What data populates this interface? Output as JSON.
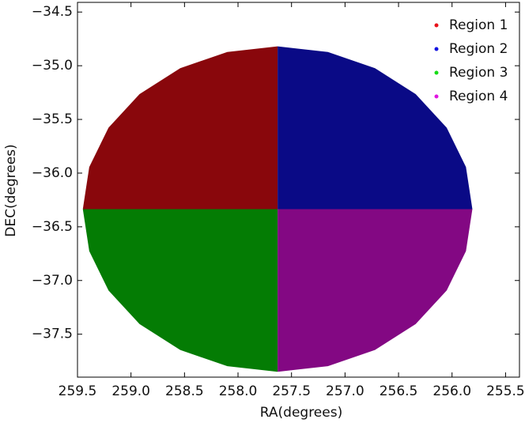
{
  "chart_data": {
    "type": "area",
    "xlabel": "RA(degrees)",
    "ylabel": "DEC(degrees)",
    "xlim": [
      259.5,
      255.37
    ],
    "ylim": [
      -37.9,
      -34.41
    ],
    "xticks": [
      {
        "value": 259.5,
        "label": "259.5"
      },
      {
        "value": 259,
        "label": "259.0"
      },
      {
        "value": 258.5,
        "label": "258.5"
      },
      {
        "value": 258,
        "label": "258.0"
      },
      {
        "value": 257.5,
        "label": "257.5"
      },
      {
        "value": 257,
        "label": "257.0"
      },
      {
        "value": 256.5,
        "label": "256.5"
      },
      {
        "value": 256,
        "label": "256.0"
      },
      {
        "value": 255.5,
        "label": "255.5"
      }
    ],
    "yticks": [
      {
        "value": -34.5,
        "label": "−34.5"
      },
      {
        "value": -35,
        "label": "−35.0"
      },
      {
        "value": -35.5,
        "label": "−35.5"
      },
      {
        "value": -36,
        "label": "−36.0"
      },
      {
        "value": -36.5,
        "label": "−36.5"
      },
      {
        "value": -37,
        "label": "−37.0"
      },
      {
        "value": -37.5,
        "label": "−37.5"
      }
    ],
    "legend": "upper right",
    "series": [
      {
        "name": "Region 1",
        "color": "#e8121a",
        "x": [
          257.63,
          259.45,
          259.39,
          259.21,
          258.92,
          258.54,
          258.1,
          257.63
        ],
        "y": [
          -36.335,
          -36.335,
          -35.943,
          -35.577,
          -35.264,
          -35.023,
          -34.872,
          -34.82
        ]
      },
      {
        "name": "Region 2",
        "color": "#1414e0",
        "x": [
          257.63,
          255.81,
          255.87,
          256.05,
          256.34,
          256.72,
          257.16,
          257.63
        ],
        "y": [
          -36.335,
          -36.335,
          -35.943,
          -35.577,
          -35.264,
          -35.023,
          -34.872,
          -34.82
        ]
      },
      {
        "name": "Region 3",
        "color": "#16dc16",
        "x": [
          257.63,
          259.45,
          259.39,
          259.21,
          258.92,
          258.54,
          258.1,
          257.63
        ],
        "y": [
          -36.335,
          -36.335,
          -36.727,
          -37.093,
          -37.406,
          -37.647,
          -37.798,
          -37.85
        ]
      },
      {
        "name": "Region 4",
        "color": "#e014e0",
        "x": [
          257.63,
          255.81,
          255.87,
          256.05,
          256.34,
          256.72,
          257.16,
          257.63
        ],
        "y": [
          -36.335,
          -36.335,
          -36.727,
          -37.093,
          -37.406,
          -37.647,
          -37.798,
          -37.85
        ]
      }
    ]
  }
}
